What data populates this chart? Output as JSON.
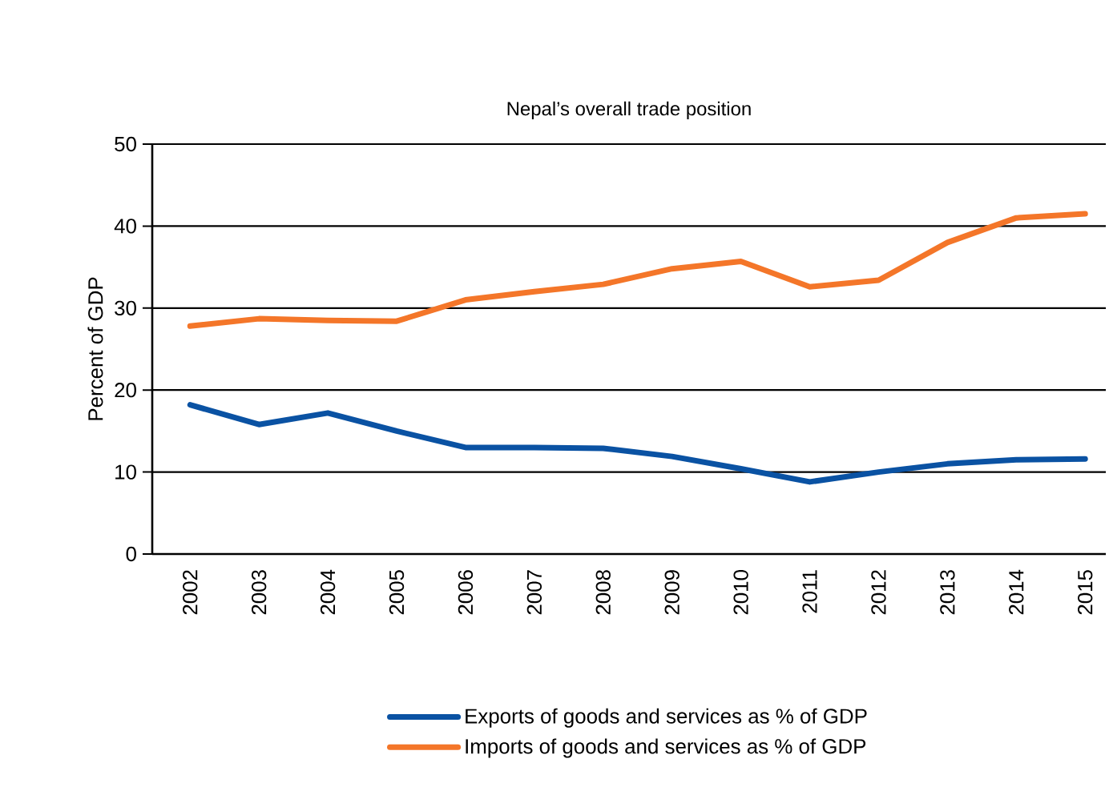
{
  "chart_data": {
    "type": "line",
    "title": "Nepal’s overall trade position",
    "ylabel": "Percent of GDP",
    "categories": [
      "2002",
      "2003",
      "2004",
      "2005",
      "2006",
      "2007",
      "2008",
      "2009",
      "2010",
      "2011",
      "2012",
      "2013",
      "2014",
      "2015"
    ],
    "series": [
      {
        "name": "Exports of goods and services as % of GDP",
        "color": "#0a52a3",
        "values": [
          18.2,
          15.8,
          17.2,
          15.0,
          13.0,
          13.0,
          12.9,
          11.9,
          10.4,
          8.8,
          10.0,
          11.0,
          11.5,
          11.6
        ]
      },
      {
        "name": "Imports of goods and services as % of GDP",
        "color": "#f47629",
        "values": [
          27.8,
          28.7,
          28.5,
          28.4,
          31.0,
          32.0,
          32.9,
          34.8,
          35.7,
          32.6,
          33.4,
          38.0,
          41.0,
          41.5
        ]
      }
    ],
    "ylim": [
      0,
      50
    ],
    "yticks": [
      0,
      10,
      20,
      30,
      40,
      50
    ],
    "grid": "y",
    "legend": "bottom",
    "marker": "none",
    "line_style": "solid"
  }
}
